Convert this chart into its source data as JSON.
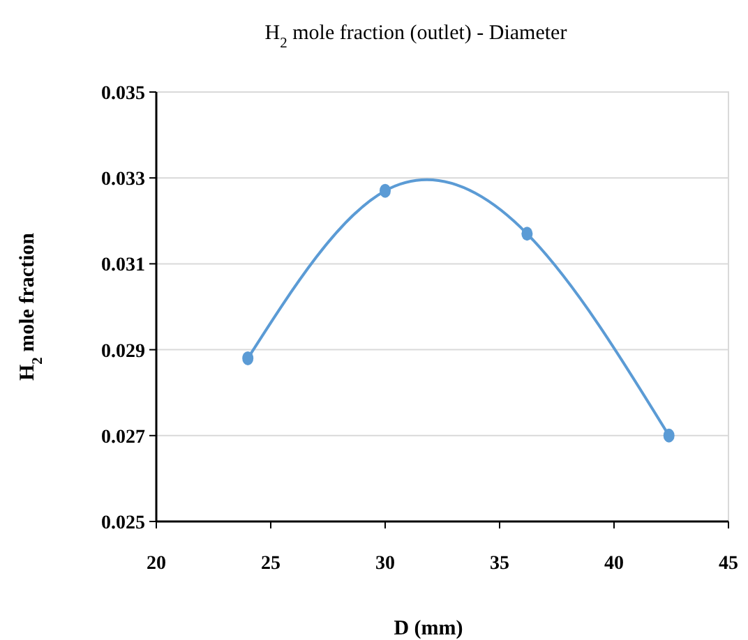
{
  "chart_data": {
    "type": "line",
    "title": "H$_{2}$ mole fraction (outlet) - Diameter",
    "xlabel": "D (mm)",
    "ylabel": "H$_{2}$ mole fraction",
    "x": [
      24,
      30,
      36.2,
      42.4
    ],
    "series": [
      {
        "color": "#5b9bd5",
        "values": [
          0.0288,
          0.0327,
          0.0317,
          0.027
        ]
      }
    ],
    "xlim": [
      20,
      45
    ],
    "xticks": [
      20,
      25,
      30,
      35,
      40,
      45
    ],
    "ylim": [
      0.025,
      0.035
    ],
    "yticks": [
      0.025,
      0.027,
      0.029,
      0.031,
      0.033,
      0.035
    ],
    "grid": "y",
    "marker": "circle",
    "line_style": "solid"
  }
}
